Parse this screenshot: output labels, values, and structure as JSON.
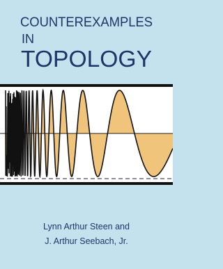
{
  "cover": {
    "title_lines": [
      "COUNTEREXAMPLES",
      "IN",
      "TOPOLOGY"
    ],
    "authors": [
      "Lynn Arthur Steen and",
      "J. Arthur Seebach, Jr."
    ]
  }
}
